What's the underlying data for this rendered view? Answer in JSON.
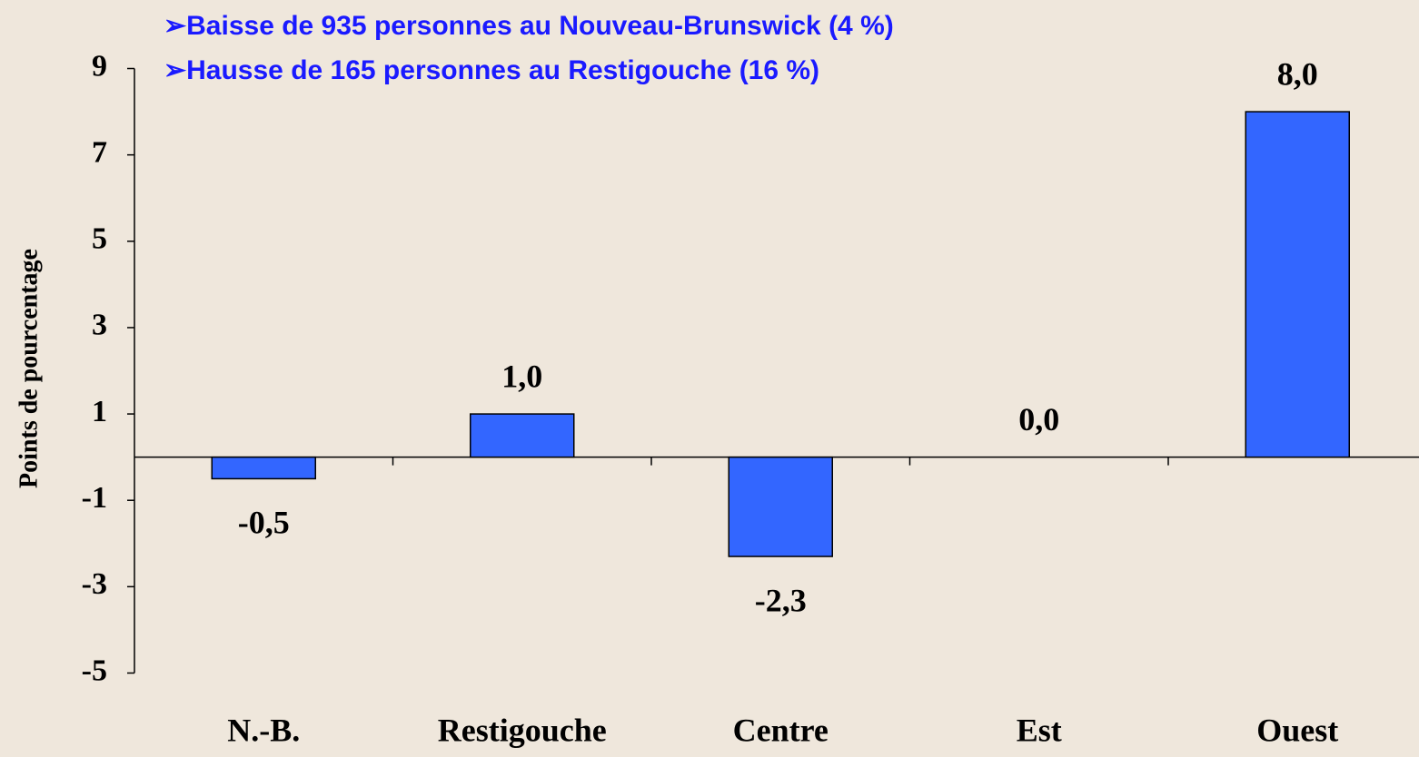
{
  "chart_data": {
    "type": "bar",
    "annotations": [
      "➢Baisse de 935 personnes au Nouveau-Brunswick (4 %)",
      "➢Hausse de 165 personnes au Restigouche (16 %)"
    ],
    "ylabel": "Points de pourcentage",
    "categories": [
      "N.-B.",
      "Restigouche",
      "Centre",
      "Est",
      "Ouest"
    ],
    "values": [
      -0.5,
      1.0,
      -2.3,
      0.0,
      8.0
    ],
    "value_labels": [
      "-0,5",
      "1,0",
      "-2,3",
      "0,0",
      "8,0"
    ],
    "color": "#3366ff",
    "ylim": [
      -5,
      9
    ],
    "yticks": [
      9,
      7,
      5,
      3,
      1,
      -1,
      -3,
      -5
    ],
    "grid": false
  }
}
